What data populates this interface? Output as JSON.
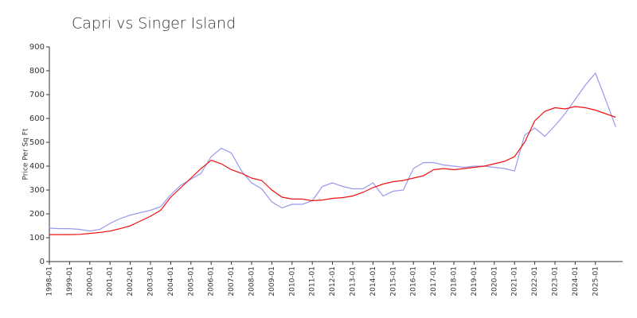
{
  "chart_data": {
    "type": "line",
    "title": "Capri vs Singer Island",
    "ylabel": "Price Per Sq Ft",
    "x": [
      "1998-01",
      "1998-07",
      "1999-01",
      "1999-07",
      "2000-01",
      "2000-07",
      "2001-01",
      "2001-07",
      "2002-01",
      "2002-07",
      "2003-01",
      "2003-07",
      "2004-01",
      "2004-07",
      "2005-01",
      "2005-07",
      "2006-01",
      "2006-07",
      "2007-01",
      "2007-07",
      "2008-01",
      "2008-07",
      "2009-01",
      "2009-07",
      "2010-01",
      "2010-07",
      "2011-01",
      "2011-07",
      "2012-01",
      "2012-07",
      "2013-01",
      "2013-07",
      "2014-01",
      "2014-07",
      "2015-01",
      "2015-07",
      "2016-01",
      "2016-07",
      "2017-01",
      "2017-07",
      "2018-01",
      "2018-07",
      "2019-01",
      "2019-07",
      "2020-01",
      "2020-07",
      "2021-01",
      "2021-07",
      "2022-01",
      "2022-07",
      "2023-01",
      "2023-07",
      "2024-01",
      "2024-07",
      "2025-01",
      "2025-07",
      "2026-01"
    ],
    "xticks": [
      "1998-01",
      "1999-01",
      "2000-01",
      "2001-01",
      "2002-01",
      "2003-01",
      "2004-01",
      "2005-01",
      "2006-01",
      "2007-01",
      "2008-01",
      "2009-01",
      "2010-01",
      "2011-01",
      "2012-01",
      "2013-01",
      "2014-01",
      "2015-01",
      "2016-01",
      "2017-01",
      "2018-01",
      "2019-01",
      "2020-01",
      "2021-01",
      "2022-01",
      "2023-01",
      "2024-01",
      "2025-01"
    ],
    "series": [
      {
        "color": "#9999ee",
        "values": [
          140,
          138,
          138,
          135,
          128,
          135,
          160,
          180,
          195,
          205,
          215,
          230,
          280,
          320,
          345,
          370,
          440,
          475,
          455,
          380,
          330,
          305,
          250,
          225,
          240,
          240,
          255,
          315,
          330,
          315,
          305,
          305,
          330,
          275,
          295,
          300,
          390,
          415,
          415,
          405,
          400,
          395,
          400,
          400,
          395,
          390,
          380,
          530,
          560,
          525,
          570,
          620,
          680,
          740,
          790,
          680,
          565
        ]
      },
      {
        "color": "#ee1111",
        "values": [
          113,
          113,
          113,
          114,
          118,
          122,
          128,
          138,
          150,
          170,
          190,
          215,
          270,
          310,
          350,
          390,
          425,
          410,
          385,
          370,
          350,
          340,
          300,
          270,
          262,
          262,
          255,
          258,
          265,
          268,
          275,
          290,
          310,
          325,
          335,
          340,
          350,
          360,
          385,
          390,
          385,
          390,
          395,
          400,
          410,
          420,
          440,
          500,
          590,
          630,
          645,
          640,
          650,
          645,
          635,
          620,
          605
        ]
      }
    ],
    "ylim": [
      0,
      900
    ],
    "yticks": [
      0,
      100,
      200,
      300,
      400,
      500,
      600,
      700,
      800,
      900
    ]
  }
}
